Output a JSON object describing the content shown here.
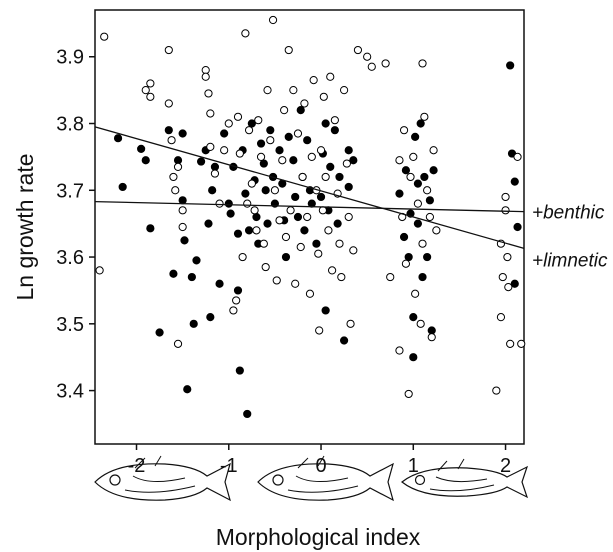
{
  "chart_data": {
    "type": "scatter",
    "title": "",
    "xlabel": "Morphological index",
    "ylabel": "Ln growth rate",
    "xlim": [
      -2.45,
      2.2
    ],
    "ylim": [
      3.32,
      3.97
    ],
    "x_ticks": [
      -2,
      -1,
      0,
      1,
      2
    ],
    "y_ticks": [
      3.4,
      3.5,
      3.6,
      3.7,
      3.8,
      3.9
    ],
    "grid": false,
    "legend": "none",
    "marker_colors": {
      "filled": "#000000",
      "open": "#ffffff",
      "edge": "#000000"
    },
    "series": [
      {
        "marker": "filled",
        "points": [
          [
            -2.2,
            3.778
          ],
          [
            -2.15,
            3.705
          ],
          [
            -1.95,
            3.762
          ],
          [
            -1.9,
            3.745
          ],
          [
            -1.85,
            3.643
          ],
          [
            -1.75,
            3.487
          ],
          [
            -1.65,
            3.79
          ],
          [
            -1.6,
            3.575
          ],
          [
            -1.55,
            3.745
          ],
          [
            -1.5,
            3.785
          ],
          [
            -1.5,
            3.685
          ],
          [
            -1.48,
            3.625
          ],
          [
            -1.45,
            3.402
          ],
          [
            -1.4,
            3.57
          ],
          [
            -1.38,
            3.5
          ],
          [
            -1.35,
            3.595
          ],
          [
            -1.3,
            3.743
          ],
          [
            -1.25,
            3.76
          ],
          [
            -1.22,
            3.65
          ],
          [
            -1.2,
            3.51
          ],
          [
            -1.18,
            3.7
          ],
          [
            -1.15,
            3.735
          ],
          [
            -1.1,
            3.56
          ],
          [
            -1.05,
            3.785
          ],
          [
            -1.0,
            3.68
          ],
          [
            -0.98,
            3.665
          ],
          [
            -0.95,
            3.735
          ],
          [
            -0.9,
            3.635
          ],
          [
            -0.9,
            3.55
          ],
          [
            -0.88,
            3.43
          ],
          [
            -0.85,
            3.76
          ],
          [
            -0.82,
            3.695
          ],
          [
            -0.8,
            3.365
          ],
          [
            -0.78,
            3.64
          ],
          [
            -0.75,
            3.8
          ],
          [
            -0.72,
            3.715
          ],
          [
            -0.7,
            3.66
          ],
          [
            -0.68,
            3.62
          ],
          [
            -0.65,
            3.77
          ],
          [
            -0.62,
            3.74
          ],
          [
            -0.6,
            3.7
          ],
          [
            -0.58,
            3.65
          ],
          [
            -0.55,
            3.79
          ],
          [
            -0.52,
            3.72
          ],
          [
            -0.5,
            3.68
          ],
          [
            -0.45,
            3.76
          ],
          [
            -0.42,
            3.71
          ],
          [
            -0.4,
            3.655
          ],
          [
            -0.38,
            3.6
          ],
          [
            -0.35,
            3.78
          ],
          [
            -0.3,
            3.745
          ],
          [
            -0.28,
            3.69
          ],
          [
            -0.25,
            3.66
          ],
          [
            -0.22,
            3.82
          ],
          [
            -0.2,
            3.72
          ],
          [
            -0.18,
            3.64
          ],
          [
            -0.15,
            3.775
          ],
          [
            -0.12,
            3.7
          ],
          [
            -0.1,
            3.68
          ],
          [
            -0.05,
            3.62
          ],
          [
            0.0,
            3.69
          ],
          [
            0.02,
            3.755
          ],
          [
            0.05,
            3.8
          ],
          [
            0.05,
            3.52
          ],
          [
            0.08,
            3.67
          ],
          [
            0.1,
            3.735
          ],
          [
            0.15,
            3.79
          ],
          [
            0.18,
            3.65
          ],
          [
            0.2,
            3.72
          ],
          [
            0.25,
            3.475
          ],
          [
            0.3,
            3.76
          ],
          [
            0.3,
            3.705
          ],
          [
            0.35,
            3.745
          ],
          [
            0.85,
            3.695
          ],
          [
            0.9,
            3.63
          ],
          [
            0.92,
            3.73
          ],
          [
            0.95,
            3.6
          ],
          [
            0.97,
            3.665
          ],
          [
            1.0,
            3.45
          ],
          [
            1.0,
            3.51
          ],
          [
            1.02,
            3.78
          ],
          [
            1.05,
            3.71
          ],
          [
            1.05,
            3.65
          ],
          [
            1.08,
            3.8
          ],
          [
            1.1,
            3.57
          ],
          [
            1.12,
            3.72
          ],
          [
            1.15,
            3.6
          ],
          [
            1.18,
            3.685
          ],
          [
            1.2,
            3.49
          ],
          [
            1.22,
            3.73
          ],
          [
            2.05,
            3.887
          ],
          [
            2.07,
            3.755
          ],
          [
            2.1,
            3.713
          ],
          [
            2.13,
            3.645
          ],
          [
            2.1,
            3.56
          ]
        ]
      },
      {
        "marker": "open",
        "points": [
          [
            -2.35,
            3.93
          ],
          [
            -2.4,
            3.58
          ],
          [
            -1.9,
            3.85
          ],
          [
            -1.85,
            3.84
          ],
          [
            -1.85,
            3.86
          ],
          [
            -1.65,
            3.91
          ],
          [
            -1.65,
            3.83
          ],
          [
            -1.62,
            3.775
          ],
          [
            -1.6,
            3.72
          ],
          [
            -1.58,
            3.7
          ],
          [
            -1.55,
            3.735
          ],
          [
            -1.55,
            3.47
          ],
          [
            -1.5,
            3.67
          ],
          [
            -1.5,
            3.645
          ],
          [
            -1.25,
            3.88
          ],
          [
            -1.25,
            3.87
          ],
          [
            -1.22,
            3.845
          ],
          [
            -1.2,
            3.815
          ],
          [
            -1.2,
            3.765
          ],
          [
            -1.15,
            3.725
          ],
          [
            -1.1,
            3.68
          ],
          [
            -1.05,
            3.76
          ],
          [
            -1.0,
            3.8
          ],
          [
            -0.95,
            3.52
          ],
          [
            -0.92,
            3.535
          ],
          [
            -0.9,
            3.81
          ],
          [
            -0.88,
            3.755
          ],
          [
            -0.85,
            3.6
          ],
          [
            -0.82,
            3.935
          ],
          [
            -0.8,
            3.68
          ],
          [
            -0.78,
            3.79
          ],
          [
            -0.75,
            3.71
          ],
          [
            -0.72,
            3.67
          ],
          [
            -0.7,
            3.64
          ],
          [
            -0.68,
            3.805
          ],
          [
            -0.65,
            3.75
          ],
          [
            -0.62,
            3.62
          ],
          [
            -0.6,
            3.585
          ],
          [
            -0.58,
            3.85
          ],
          [
            -0.55,
            3.775
          ],
          [
            -0.52,
            3.955
          ],
          [
            -0.5,
            3.7
          ],
          [
            -0.48,
            3.565
          ],
          [
            -0.45,
            3.655
          ],
          [
            -0.42,
            3.745
          ],
          [
            -0.4,
            3.82
          ],
          [
            -0.38,
            3.63
          ],
          [
            -0.35,
            3.91
          ],
          [
            -0.33,
            3.67
          ],
          [
            -0.3,
            3.85
          ],
          [
            -0.28,
            3.56
          ],
          [
            -0.25,
            3.785
          ],
          [
            -0.22,
            3.615
          ],
          [
            -0.2,
            3.72
          ],
          [
            -0.18,
            3.83
          ],
          [
            -0.15,
            3.66
          ],
          [
            -0.12,
            3.545
          ],
          [
            -0.1,
            3.75
          ],
          [
            -0.08,
            3.865
          ],
          [
            -0.05,
            3.7
          ],
          [
            -0.03,
            3.605
          ],
          [
            -0.02,
            3.49
          ],
          [
            0.0,
            3.76
          ],
          [
            0.02,
            3.67
          ],
          [
            0.03,
            3.84
          ],
          [
            0.05,
            3.72
          ],
          [
            0.08,
            3.64
          ],
          [
            0.1,
            3.87
          ],
          [
            0.12,
            3.58
          ],
          [
            0.15,
            3.805
          ],
          [
            0.18,
            3.695
          ],
          [
            0.2,
            3.62
          ],
          [
            0.22,
            3.57
          ],
          [
            0.25,
            3.85
          ],
          [
            0.28,
            3.74
          ],
          [
            0.3,
            3.66
          ],
          [
            0.32,
            3.5
          ],
          [
            0.35,
            3.61
          ],
          [
            0.4,
            3.91
          ],
          [
            0.5,
            3.9
          ],
          [
            0.55,
            3.885
          ],
          [
            0.7,
            3.89
          ],
          [
            0.75,
            3.57
          ],
          [
            0.85,
            3.745
          ],
          [
            0.85,
            3.46
          ],
          [
            0.88,
            3.66
          ],
          [
            0.9,
            3.79
          ],
          [
            0.92,
            3.59
          ],
          [
            0.95,
            3.395
          ],
          [
            0.97,
            3.72
          ],
          [
            1.0,
            3.75
          ],
          [
            1.02,
            3.545
          ],
          [
            1.05,
            3.68
          ],
          [
            1.08,
            3.5
          ],
          [
            1.1,
            3.89
          ],
          [
            1.1,
            3.62
          ],
          [
            1.12,
            3.81
          ],
          [
            1.15,
            3.7
          ],
          [
            1.18,
            3.66
          ],
          [
            1.2,
            3.48
          ],
          [
            1.22,
            3.76
          ],
          [
            1.25,
            3.64
          ],
          [
            1.9,
            3.4
          ],
          [
            1.95,
            3.62
          ],
          [
            1.97,
            3.57
          ],
          [
            2.0,
            3.69
          ],
          [
            2.0,
            3.67
          ],
          [
            2.02,
            3.6
          ],
          [
            2.03,
            3.555
          ],
          [
            2.05,
            3.47
          ],
          [
            2.13,
            3.75
          ],
          [
            2.17,
            3.47
          ],
          [
            1.95,
            3.51
          ]
        ]
      }
    ],
    "lines": [
      {
        "label": "+benthic",
        "x": [
          -2.45,
          2.2
        ],
        "y": [
          3.683,
          3.668
        ]
      },
      {
        "label": "+limnetic",
        "x": [
          -2.45,
          2.2
        ],
        "y": [
          3.795,
          3.613
        ]
      }
    ]
  }
}
